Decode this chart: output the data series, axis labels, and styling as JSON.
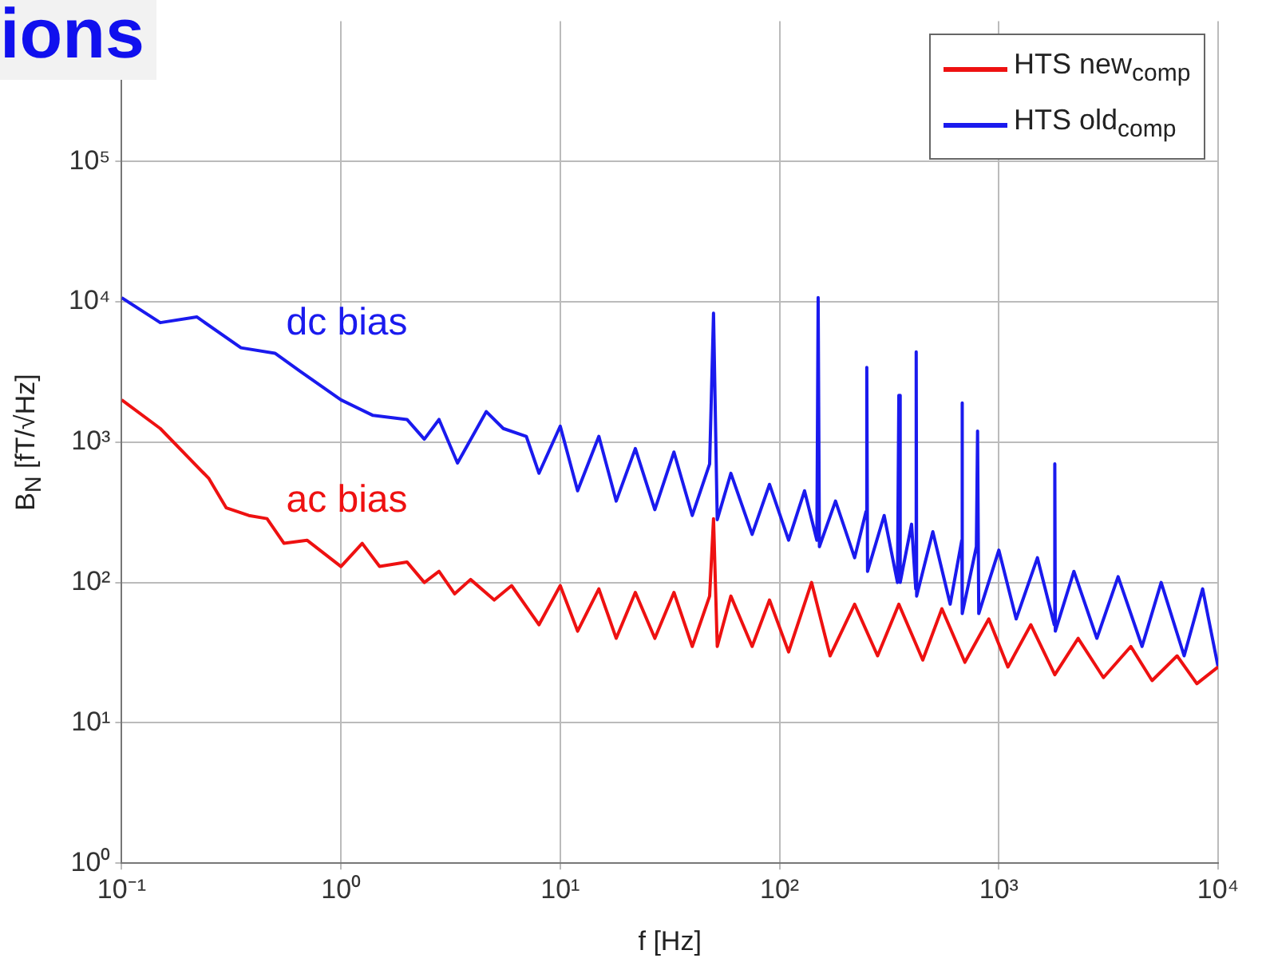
{
  "chart_data": {
    "type": "line",
    "title": "ions",
    "xlabel": "f [Hz]",
    "ylabel": "B$_{N}$ [fT/√Hz]",
    "log": "xy",
    "grid": true,
    "legend": "top right",
    "marker": "none",
    "line_style": "solid",
    "xlim": [
      0.1,
      10000
    ],
    "xticks": [
      {
        "value": 0.1,
        "label": "10⁻¹"
      },
      {
        "value": 1,
        "label": "10⁰"
      },
      {
        "value": 10,
        "label": "10¹"
      },
      {
        "value": 100,
        "label": "10²"
      },
      {
        "value": 1000,
        "label": "10³"
      },
      {
        "value": 10000,
        "label": "10⁴"
      }
    ],
    "ylim": [
      1,
      1000000
    ],
    "yticks": [
      {
        "value": 1,
        "label": "10⁰"
      },
      {
        "value": 10,
        "label": "10¹"
      },
      {
        "value": 100,
        "label": "10²"
      },
      {
        "value": 1000,
        "label": "10³"
      },
      {
        "value": 10000,
        "label": "10⁴"
      },
      {
        "value": 100000,
        "label": "10⁵"
      }
    ],
    "annotations": [
      "dc bias",
      "ac bias"
    ],
    "series": [
      {
        "name": "HTS new$_{comp}$",
        "color": "#ee1111",
        "x": [
          0.1,
          0.15,
          0.25,
          0.3,
          0.38,
          0.46,
          0.55,
          0.7,
          1,
          1.25,
          1.5,
          2,
          2.4,
          2.8,
          3.3,
          3.9,
          5,
          6,
          8,
          10,
          12,
          15,
          18,
          22,
          27,
          33,
          40,
          48,
          50,
          52,
          60,
          75,
          90,
          110,
          140,
          170,
          220,
          280,
          350,
          450,
          550,
          700,
          900,
          1100,
          1400,
          1800,
          2300,
          3000,
          4000,
          5000,
          6500,
          8000,
          10000
        ],
        "values": [
          2000,
          1250,
          550,
          340,
          300,
          285,
          190,
          200,
          130,
          190,
          130,
          140,
          100,
          120,
          83,
          105,
          75,
          95,
          50,
          95,
          45,
          90,
          40,
          85,
          40,
          85,
          35,
          80,
          285,
          35,
          80,
          35,
          75,
          32,
          100,
          30,
          70,
          30,
          70,
          28,
          65,
          27,
          55,
          25,
          50,
          22,
          40,
          21,
          35,
          20,
          30,
          19,
          25
        ]
      },
      {
        "name": "HTS old$_{comp}$",
        "color": "#1a1aee",
        "x": [
          0.1,
          0.15,
          0.22,
          0.35,
          0.5,
          0.65,
          1,
          1.4,
          2,
          2.4,
          2.8,
          3.4,
          4.6,
          5.5,
          7,
          8,
          10,
          12,
          15,
          18,
          22,
          27,
          33,
          40,
          48,
          50,
          52,
          60,
          75,
          90,
          110,
          130,
          148,
          150,
          152,
          180,
          220,
          248,
          250,
          252,
          300,
          345,
          350,
          355,
          400,
          418,
          420,
          422,
          500,
          600,
          678,
          680,
          682,
          790,
          800,
          810,
          1000,
          1200,
          1500,
          1790,
          1800,
          1810,
          2200,
          2800,
          3500,
          4500,
          5500,
          7000,
          8500,
          10000
        ],
        "values": [
          10700,
          7100,
          7800,
          4700,
          4300,
          3200,
          2000,
          1550,
          1450,
          1050,
          1450,
          710,
          1650,
          1250,
          1100,
          600,
          1300,
          450,
          1100,
          380,
          900,
          330,
          850,
          300,
          700,
          8300,
          280,
          600,
          220,
          500,
          200,
          450,
          200,
          10700,
          180,
          380,
          150,
          320,
          3400,
          120,
          300,
          100,
          2150,
          100,
          260,
          90,
          4400,
          80,
          230,
          70,
          200,
          1900,
          60,
          180,
          1200,
          60,
          170,
          55,
          150,
          50,
          700,
          45,
          120,
          40,
          110,
          35,
          100,
          30,
          90,
          25
        ]
      }
    ]
  }
}
